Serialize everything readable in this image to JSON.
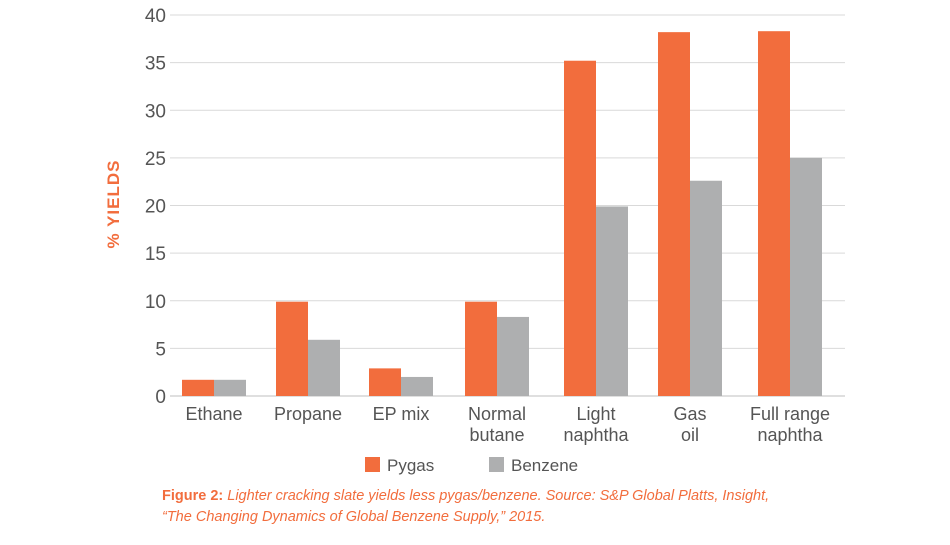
{
  "chart_data": {
    "type": "bar",
    "ylabel": "% YIELDS",
    "ylim": [
      0,
      40
    ],
    "yticks": [
      0,
      5,
      10,
      15,
      20,
      25,
      30,
      35,
      40
    ],
    "grid": true,
    "legend_position": "bottom-center",
    "categories": [
      [
        "Ethane"
      ],
      [
        "Propane"
      ],
      [
        "EP mix"
      ],
      [
        "Normal",
        "butane"
      ],
      [
        "Light",
        "naphtha"
      ],
      [
        "Gas",
        "oil"
      ],
      [
        "Full range",
        "naphtha"
      ]
    ],
    "series": [
      {
        "name": "Pygas",
        "color": "#f26d3d",
        "values": [
          1.7,
          9.9,
          2.9,
          9.9,
          35.2,
          38.2,
          38.3
        ]
      },
      {
        "name": "Benzene",
        "color": "#aeafb0",
        "values": [
          1.7,
          5.9,
          2.0,
          8.3,
          19.9,
          22.6,
          25.0
        ]
      }
    ]
  },
  "caption": {
    "lead": "Figure 2:",
    "line1": "Lighter cracking slate yields less pygas/benzene. Source: S&P Global Platts, Insight,",
    "line2": "“The Changing Dynamics of Global Benzene Supply,” 2015."
  }
}
